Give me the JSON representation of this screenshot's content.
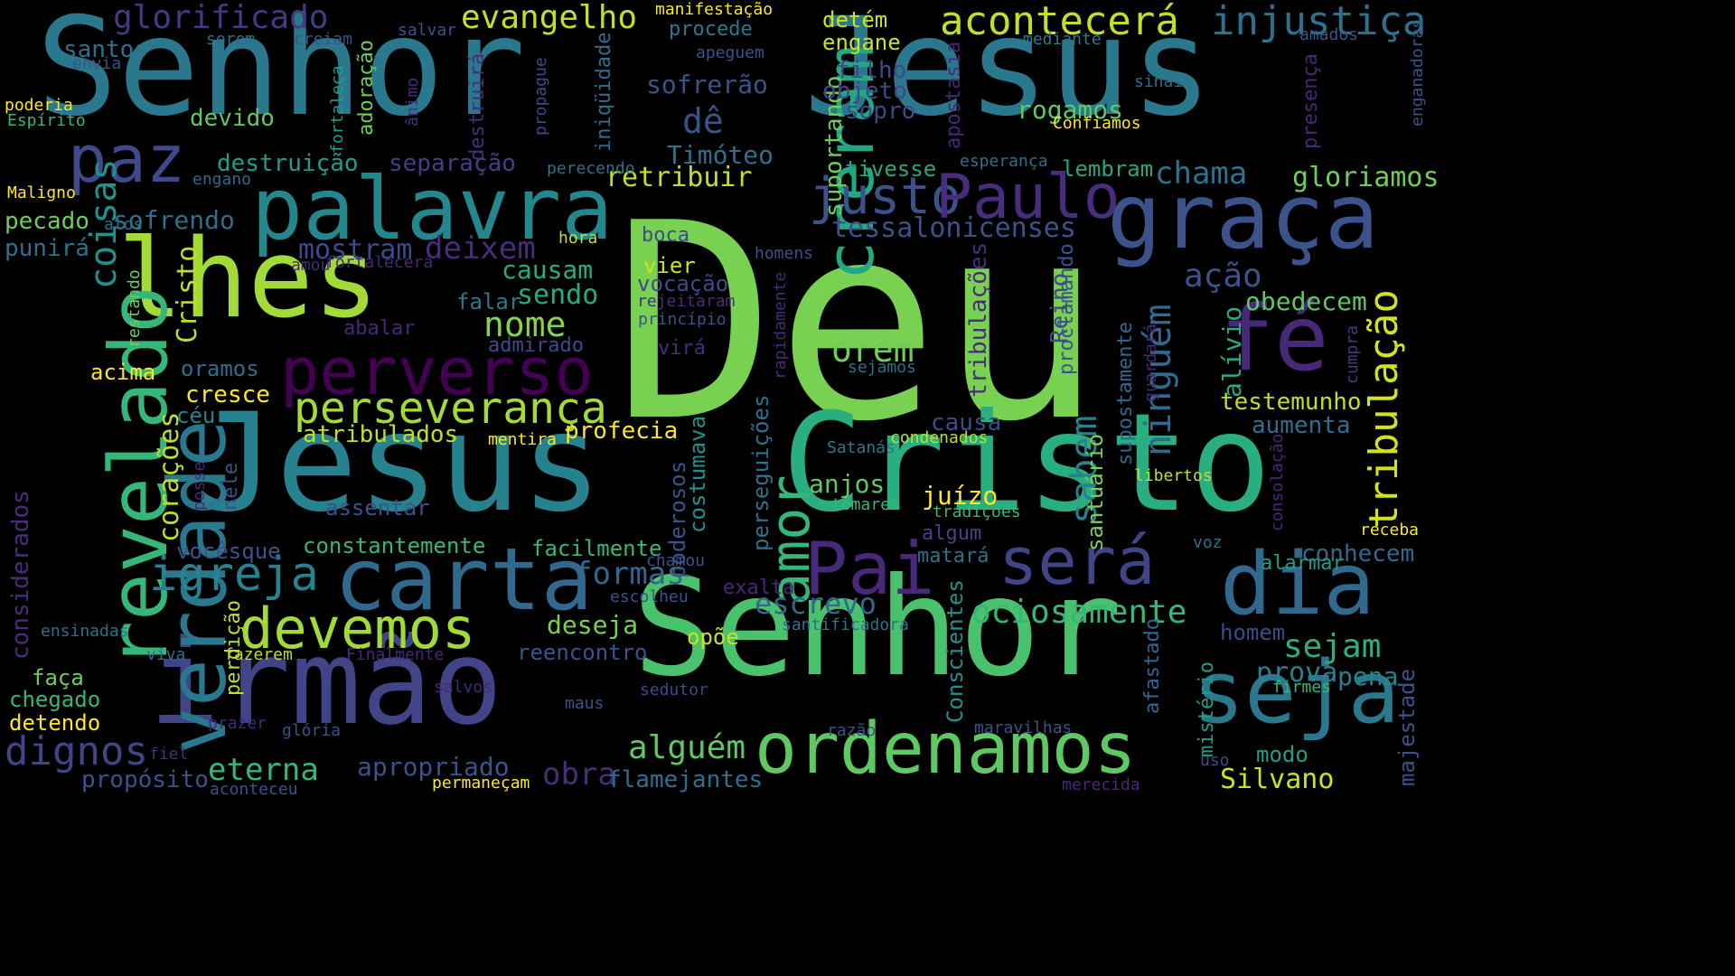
{
  "title": "",
  "palette": {
    "purple": "#440154",
    "indigo": "#46327e",
    "blue": "#365c8d",
    "teal": "#277f8e",
    "sea": "#1fa187",
    "green": "#4ac16d",
    "lime": "#a0da39",
    "yellow": "#fde725"
  },
  "words": [
    {
      "t": "Deu",
      "c": "#79d151",
      "v": false
    },
    {
      "t": "Senhor",
      "c": "#2a788e",
      "v": false
    },
    {
      "t": "Jesus",
      "c": "#2a788e",
      "v": false
    },
    {
      "t": "Jesus",
      "c": "#26828e",
      "v": false
    },
    {
      "t": "Cristo",
      "c": "#29af7f",
      "v": false
    },
    {
      "t": "Senhor",
      "c": "#4ac16d",
      "v": false
    },
    {
      "t": "irmão",
      "c": "#414487",
      "v": false
    },
    {
      "t": "lhes",
      "c": "#a2da37",
      "v": false
    },
    {
      "t": "palavra",
      "c": "#23888e",
      "v": false
    },
    {
      "t": "graça",
      "c": "#3b528b",
      "v": false
    },
    {
      "t": "revelado",
      "c": "#35b779",
      "v": true
    },
    {
      "t": "verdade",
      "c": "#2a788e",
      "v": true
    },
    {
      "t": "perverso",
      "c": "#440154",
      "v": false
    },
    {
      "t": "fé",
      "c": "#482878",
      "v": false
    },
    {
      "t": "carta",
      "c": "#31688e",
      "v": false
    },
    {
      "t": "dia",
      "c": "#31688e",
      "v": false
    },
    {
      "t": "seja",
      "c": "#2a788e",
      "v": false
    },
    {
      "t": "ordenamos",
      "c": "#5ec962",
      "v": false
    },
    {
      "t": "Pai",
      "c": "#482878",
      "v": false
    },
    {
      "t": "será",
      "c": "#414487",
      "v": false
    },
    {
      "t": "paz",
      "c": "#3e4a89",
      "v": false
    },
    {
      "t": "creram",
      "c": "#22a884",
      "v": true
    },
    {
      "t": "justo",
      "c": "#3b528b",
      "v": false
    },
    {
      "t": "Paulo",
      "c": "#472d7b",
      "v": false
    },
    {
      "t": "amor",
      "c": "#35b779",
      "v": true
    },
    {
      "t": "devemos",
      "c": "#a2da37",
      "v": false
    },
    {
      "t": "igreja",
      "c": "#26828e",
      "v": false
    },
    {
      "t": "perseverança",
      "c": "#a2da37",
      "v": false
    },
    {
      "t": "acontecerá",
      "c": "#c2df23",
      "v": false
    },
    {
      "t": "injustiça",
      "c": "#2c718e",
      "v": false
    },
    {
      "t": "evangelho",
      "c": "#c2df23",
      "v": false
    },
    {
      "t": "glorificado",
      "c": "#443983",
      "v": false
    },
    {
      "t": "chama",
      "c": "#2c718e",
      "v": false
    },
    {
      "t": "gloriamos",
      "c": "#6ece58",
      "v": false
    },
    {
      "t": "tribulação",
      "c": "#d2e21b",
      "v": true
    },
    {
      "t": "ninguém",
      "c": "#306a8e",
      "v": true
    },
    {
      "t": "ação",
      "c": "#3b528b",
      "v": false
    },
    {
      "t": "obedecem",
      "c": "#5ec962",
      "v": false
    },
    {
      "t": "orem",
      "c": "#6ece58",
      "v": false
    },
    {
      "t": "nome",
      "c": "#84d44b",
      "v": false
    },
    {
      "t": "sendo",
      "c": "#25ac82",
      "v": false
    },
    {
      "t": "causam",
      "c": "#25ac82",
      "v": false
    },
    {
      "t": "deixem",
      "c": "#472d7b",
      "v": false
    },
    {
      "t": "mostram",
      "c": "#3e4a89",
      "v": false
    },
    {
      "t": "tessalonicenses",
      "c": "#3b528b",
      "v": false
    },
    {
      "t": "coisas",
      "c": "#21918c",
      "v": true
    },
    {
      "t": "Cristo",
      "c": "#bddf26",
      "v": true
    },
    {
      "t": "corações",
      "c": "#bddf26",
      "v": true
    },
    {
      "t": "sofrendo",
      "c": "#2e6f8e",
      "v": false
    },
    {
      "t": "punirá",
      "c": "#2e6f8e",
      "v": false
    },
    {
      "t": "pecado",
      "c": "#6ece58",
      "v": false
    },
    {
      "t": "destruição",
      "c": "#1f9e89",
      "v": false
    },
    {
      "t": "separação",
      "c": "#433e85",
      "v": false
    },
    {
      "t": "retribuir",
      "c": "#c2df23",
      "v": false
    },
    {
      "t": "Timóteo",
      "c": "#2c718e",
      "v": false
    },
    {
      "t": "dê",
      "c": "#3b528b",
      "v": false
    },
    {
      "t": "sofrerão",
      "c": "#3b528b",
      "v": false
    },
    {
      "t": "devido",
      "c": "#5ec962",
      "v": false
    },
    {
      "t": "santos",
      "c": "#2c718e",
      "v": false
    },
    {
      "t": "sinais",
      "c": "#2c718e",
      "v": false
    },
    {
      "t": "presença",
      "c": "#482878",
      "v": true
    },
    {
      "t": "apostasia",
      "c": "#482878",
      "v": true
    },
    {
      "t": "suportando",
      "c": "#6ece58",
      "v": true
    },
    {
      "t": "filho",
      "c": "#3e4a89",
      "v": false
    },
    {
      "t": "objeto",
      "c": "#3e4a89",
      "v": false
    },
    {
      "t": "sopro",
      "c": "#3e4a89",
      "v": false
    },
    {
      "t": "rogamos",
      "c": "#5ec962",
      "v": false
    },
    {
      "t": "tivesse",
      "c": "#22a884",
      "v": false
    },
    {
      "t": "lembram",
      "c": "#22a884",
      "v": false
    },
    {
      "t": "engane",
      "c": "#cde11d",
      "v": false
    },
    {
      "t": "detém",
      "c": "#cde11d",
      "v": false
    },
    {
      "t": "procede",
      "c": "#2a788e",
      "v": false
    },
    {
      "t": "Reino",
      "c": "#3e4a89",
      "v": true
    },
    {
      "t": "tribulações",
      "c": "#472d7b",
      "v": true
    },
    {
      "t": "sabem",
      "c": "#26828e",
      "v": true
    },
    {
      "t": "alívio",
      "c": "#25ac82",
      "v": true
    },
    {
      "t": "testemunho",
      "c": "#c2df23",
      "v": false
    },
    {
      "t": "aumenta",
      "c": "#2e6f8e",
      "v": false
    },
    {
      "t": "causa",
      "c": "#3e4a89",
      "v": false
    },
    {
      "t": "juízo",
      "c": "#fde725",
      "v": false
    },
    {
      "t": "anjos",
      "c": "#5ec962",
      "v": false
    },
    {
      "t": "algum",
      "c": "#414487",
      "v": false
    },
    {
      "t": "matará",
      "c": "#2c718e",
      "v": false
    },
    {
      "t": "Conscientes",
      "c": "#21918c",
      "v": true
    },
    {
      "t": "santuário",
      "c": "#7ad151",
      "v": true
    },
    {
      "t": "supostamente",
      "c": "#31688e",
      "v": true
    },
    {
      "t": "proclamando",
      "c": "#3b528b",
      "v": true
    },
    {
      "t": "escrevo",
      "c": "#31688e",
      "v": false
    },
    {
      "t": "ociosamente",
      "c": "#35b779",
      "v": false
    },
    {
      "t": "sejam",
      "c": "#2ab07f",
      "v": false
    },
    {
      "t": "prova",
      "c": "#26828e",
      "v": false
    },
    {
      "t": "pena",
      "c": "#26828e",
      "v": false
    },
    {
      "t": "homem",
      "c": "#3e4a89",
      "v": false
    },
    {
      "t": "conhecem",
      "c": "#31688e",
      "v": false
    },
    {
      "t": "alarmar",
      "c": "#1f9e89",
      "v": false
    },
    {
      "t": "formas",
      "c": "#31688e",
      "v": false
    },
    {
      "t": "alguém",
      "c": "#5ec962",
      "v": false
    },
    {
      "t": "eterna",
      "c": "#35b779",
      "v": false
    },
    {
      "t": "apropriado",
      "c": "#3b528b",
      "v": false
    },
    {
      "t": "obra",
      "c": "#472d7b",
      "v": false
    },
    {
      "t": "flamejantes",
      "c": "#2c718e",
      "v": false
    },
    {
      "t": "Silvano",
      "c": "#cde11d",
      "v": false
    },
    {
      "t": "deseja",
      "c": "#7ad151",
      "v": false
    },
    {
      "t": "reencontro",
      "c": "#3b528b",
      "v": false
    },
    {
      "t": "opõe",
      "c": "#cde11d",
      "v": false
    },
    {
      "t": "dignos",
      "c": "#414487",
      "v": false
    },
    {
      "t": "propósito",
      "c": "#3b528b",
      "v": false
    },
    {
      "t": "chegado",
      "c": "#35b779",
      "v": false
    },
    {
      "t": "detendo",
      "c": "#fde725",
      "v": false
    },
    {
      "t": "faça",
      "c": "#6ece58",
      "v": false
    },
    {
      "t": "considerados",
      "c": "#472d7b",
      "v": true
    },
    {
      "t": "ensinadas",
      "c": "#2c718e",
      "v": false
    },
    {
      "t": "vocêsque",
      "c": "#3b528b",
      "v": false
    },
    {
      "t": "constantemente",
      "c": "#35b779",
      "v": false
    },
    {
      "t": "facilmente",
      "c": "#35b779",
      "v": false
    },
    {
      "t": "assentar",
      "c": "#3b528b",
      "v": false
    },
    {
      "t": "atribulados",
      "c": "#c2df23",
      "v": false
    },
    {
      "t": "profecia",
      "c": "#fde725",
      "v": false
    },
    {
      "t": "mentira",
      "c": "#fde725",
      "v": false
    },
    {
      "t": "céu",
      "c": "#26828e",
      "v": false
    },
    {
      "t": "cresce",
      "c": "#fde725",
      "v": false
    },
    {
      "t": "oramos",
      "c": "#2e6f8e",
      "v": false
    },
    {
      "t": "acima",
      "c": "#fde725",
      "v": false
    },
    {
      "t": "admirado",
      "c": "#3e4a89",
      "v": false
    },
    {
      "t": "vier",
      "c": "#cde11d",
      "v": false
    },
    {
      "t": "vocação",
      "c": "#3e4a89",
      "v": false
    },
    {
      "t": "falar",
      "c": "#2a788e",
      "v": false
    },
    {
      "t": "boca",
      "c": "#3e4a89",
      "v": false
    },
    {
      "t": "virá",
      "c": "#472d7b",
      "v": false
    },
    {
      "t": "poderosos",
      "c": "#3b528b",
      "v": true
    },
    {
      "t": "costumava",
      "c": "#21918c",
      "v": true
    },
    {
      "t": "perseguições",
      "c": "#2c718e",
      "v": true
    },
    {
      "t": "exalta",
      "c": "#482878",
      "v": false
    },
    {
      "t": "chamou",
      "c": "#3b528b",
      "v": false
    },
    {
      "t": "escolheu",
      "c": "#3b528b",
      "v": false
    },
    {
      "t": "santificadora",
      "c": "#2c718e",
      "v": false
    },
    {
      "t": "Finalmente",
      "c": "#482878",
      "v": false
    },
    {
      "t": "salvos",
      "c": "#482878",
      "v": false
    },
    {
      "t": "sedutor",
      "c": "#3e4a89",
      "v": false
    },
    {
      "t": "maus",
      "c": "#3b528b",
      "v": false
    },
    {
      "t": "prazer",
      "c": "#482878",
      "v": false
    },
    {
      "t": "glória",
      "c": "#3b528b",
      "v": false
    },
    {
      "t": "fiel",
      "c": "#472d7b",
      "v": false
    },
    {
      "t": "aconteceu",
      "c": "#3b528b",
      "v": false
    },
    {
      "t": "permaneçam",
      "c": "#fde725",
      "v": false
    },
    {
      "t": "merecida",
      "c": "#482878",
      "v": false
    },
    {
      "t": "maravilhas",
      "c": "#3b528b",
      "v": false
    },
    {
      "t": "razão",
      "c": "#3b528b",
      "v": false
    },
    {
      "t": "mistério",
      "c": "#1f9e89",
      "v": true
    },
    {
      "t": "afastado",
      "c": "#31688e",
      "v": true
    },
    {
      "t": "uso",
      "c": "#3e4a89",
      "v": false
    },
    {
      "t": "modo",
      "c": "#1f9e89",
      "v": false
    },
    {
      "t": "firmes",
      "c": "#35b779",
      "v": false
    },
    {
      "t": "majestade",
      "c": "#3b528b",
      "v": true
    },
    {
      "t": "receba",
      "c": "#fde725",
      "v": false
    },
    {
      "t": "voz",
      "c": "#2e6f8e",
      "v": false
    },
    {
      "t": "consolação",
      "c": "#482878",
      "v": true
    },
    {
      "t": "libertos",
      "c": "#c2df23",
      "v": false
    },
    {
      "t": "Satanás",
      "c": "#2a788e",
      "v": false
    },
    {
      "t": "condenados",
      "c": "#c2df23",
      "v": false
    },
    {
      "t": "tomarem",
      "c": "#35b779",
      "v": false
    },
    {
      "t": "tradições",
      "c": "#35b779",
      "v": false
    },
    {
      "t": "perdição",
      "c": "#bddf26",
      "v": true
    },
    {
      "t": "nele",
      "c": "#3b528b",
      "v": true
    },
    {
      "t": "posse",
      "c": "#482878",
      "v": true
    },
    {
      "t": "fazerem",
      "c": "#c2df23",
      "v": false
    },
    {
      "t": "viva",
      "c": "#2c718e",
      "v": false
    },
    {
      "t": "Maligno",
      "c": "#fde725",
      "v": false
    },
    {
      "t": "atos",
      "c": "#2e6f8e",
      "v": false
    },
    {
      "t": "engano",
      "c": "#31688e",
      "v": false
    },
    {
      "t": "poderia",
      "c": "#fde725",
      "v": false
    },
    {
      "t": "Espírito",
      "c": "#35b779",
      "v": false
    },
    {
      "t": "envia",
      "c": "#3b528b",
      "v": false
    },
    {
      "t": "serem",
      "c": "#2c718e",
      "v": false
    },
    {
      "t": "creiam",
      "c": "#3b528b",
      "v": false
    },
    {
      "t": "salvar",
      "c": "#3b528b",
      "v": false
    },
    {
      "t": "manifestação",
      "c": "#fde725",
      "v": false
    },
    {
      "t": "adoração",
      "c": "#6ece58",
      "v": true
    },
    {
      "t": "fortaleça",
      "c": "#1f9e89",
      "v": true
    },
    {
      "t": "ânimo",
      "c": "#472d7b",
      "v": true
    },
    {
      "t": "propague",
      "c": "#3e4a89",
      "v": true
    },
    {
      "t": "destruirá",
      "c": "#472d7b",
      "v": true
    },
    {
      "t": "iniqüidade",
      "c": "#2e6f8e",
      "v": true
    },
    {
      "t": "apeguem",
      "c": "#3b528b",
      "v": false
    },
    {
      "t": "perecendo",
      "c": "#2c718e",
      "v": false
    },
    {
      "t": "esperança",
      "c": "#2c718e",
      "v": false
    },
    {
      "t": "Confiamos",
      "c": "#fde725",
      "v": false
    },
    {
      "t": "mediante",
      "c": "#2a788e",
      "v": false
    },
    {
      "t": "amados",
      "c": "#3b528b",
      "v": false
    },
    {
      "t": "enganadoras",
      "c": "#3b528b",
      "v": true
    },
    {
      "t": "homens",
      "c": "#3b528b",
      "v": false
    },
    {
      "t": "hora",
      "c": "#c2df23",
      "v": false
    },
    {
      "t": "amou",
      "c": "#482878",
      "v": false
    },
    {
      "t": "fortalecerá",
      "c": "#482878",
      "v": false
    },
    {
      "t": "restando",
      "c": "#6ece58",
      "v": true
    },
    {
      "t": "abalar",
      "c": "#482878",
      "v": false
    },
    {
      "t": "rejeitaram",
      "c": "#472d7b",
      "v": false
    },
    {
      "t": "princípio",
      "c": "#3b528b",
      "v": false
    },
    {
      "t": "rapidamente",
      "c": "#482878",
      "v": true
    },
    {
      "t": "sejamos",
      "c": "#2c718e",
      "v": false
    },
    {
      "t": "guardará",
      "c": "#482878",
      "v": true
    },
    {
      "t": "cumpra",
      "c": "#443983",
      "v": true
    }
  ]
}
